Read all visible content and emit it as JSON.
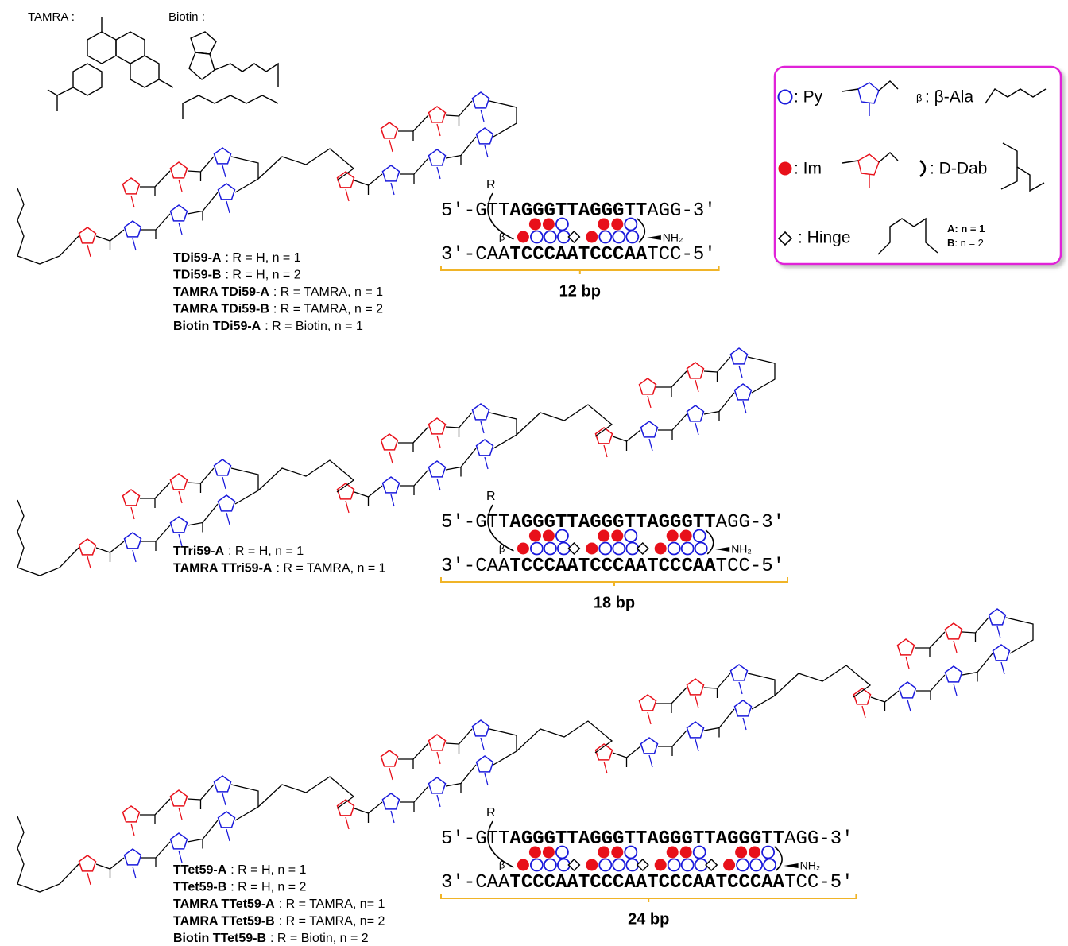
{
  "header_labels": {
    "tamra": "TAMRA :",
    "biotin": "Biotin :"
  },
  "legend": {
    "py": ": Py",
    "im": ": Im",
    "hinge": ": Hinge",
    "beta_symbol": "β",
    "beta_ala": ": β-Ala",
    "dab": ": D-Dab",
    "a_label": "A",
    "a_value": ": n = 1",
    "b_label": "B",
    "b_value": ": n = 2"
  },
  "panels": [
    {
      "compounds": [
        {
          "name": "TDi59-A",
          "desc": ": R = H, n = 1"
        },
        {
          "name": "TDi59-B",
          "desc": ": R = H, n = 2"
        },
        {
          "name": "TAMRA TDi59-A",
          "desc": ": R = TAMRA, n = 1"
        },
        {
          "name": "TAMRA TDi59-B",
          "desc": ": R = TAMRA, n = 2"
        },
        {
          "name": "Biotin TDi59-A",
          "desc": ": R = Biotin, n = 1"
        }
      ],
      "r": "R",
      "beta": "β",
      "nh2": "NH₂",
      "top": {
        "prefix": "5'-GTT",
        "core": "AGGGTTAGGGTT",
        "suffix": "AGG-3'"
      },
      "bottom": {
        "prefix": "3'-CAA",
        "core": "TCCCAATCCCAA",
        "suffix": "TCC-5'"
      },
      "length": "12 bp"
    },
    {
      "compounds": [
        {
          "name": "TTri59-A",
          "desc": ": R = H, n = 1"
        },
        {
          "name": "TAMRA TTri59-A",
          "desc": ": R = TAMRA, n = 1"
        }
      ],
      "r": "R",
      "beta": "β",
      "nh2": "NH₂",
      "top": {
        "prefix": "5'-GTT",
        "core": "AGGGTTAGGGTTAGGGTT",
        "suffix": "AGG-3'"
      },
      "bottom": {
        "prefix": "3'-CAA",
        "core": "TCCCAATCCCAATCCCAA",
        "suffix": "TCC-5'"
      },
      "length": "18 bp"
    },
    {
      "compounds": [
        {
          "name": "TTet59-A",
          "desc": ": R = H, n = 1"
        },
        {
          "name": "TTet59-B",
          "desc": ": R = H, n = 2"
        },
        {
          "name": "TAMRA TTet59-A",
          "desc": ": R = TAMRA, n= 1"
        },
        {
          "name": "TAMRA TTet59-B",
          "desc": ": R = TAMRA, n= 2"
        },
        {
          "name": "Biotin TTet59-B",
          "desc": ": R = Biotin, n = 2"
        }
      ],
      "r": "R",
      "beta": "β",
      "nh2": "NH₂",
      "top": {
        "prefix": "5'-GTT",
        "core": "AGGGTTAGGGTTAGGGTTAGGGTT",
        "suffix": "AGG-3'"
      },
      "bottom": {
        "prefix": "3'-CAA",
        "core": "TCCCAATCCCAATCCCAATCCCAA",
        "suffix": "TCC-5'"
      },
      "length": "24 bp"
    }
  ]
}
